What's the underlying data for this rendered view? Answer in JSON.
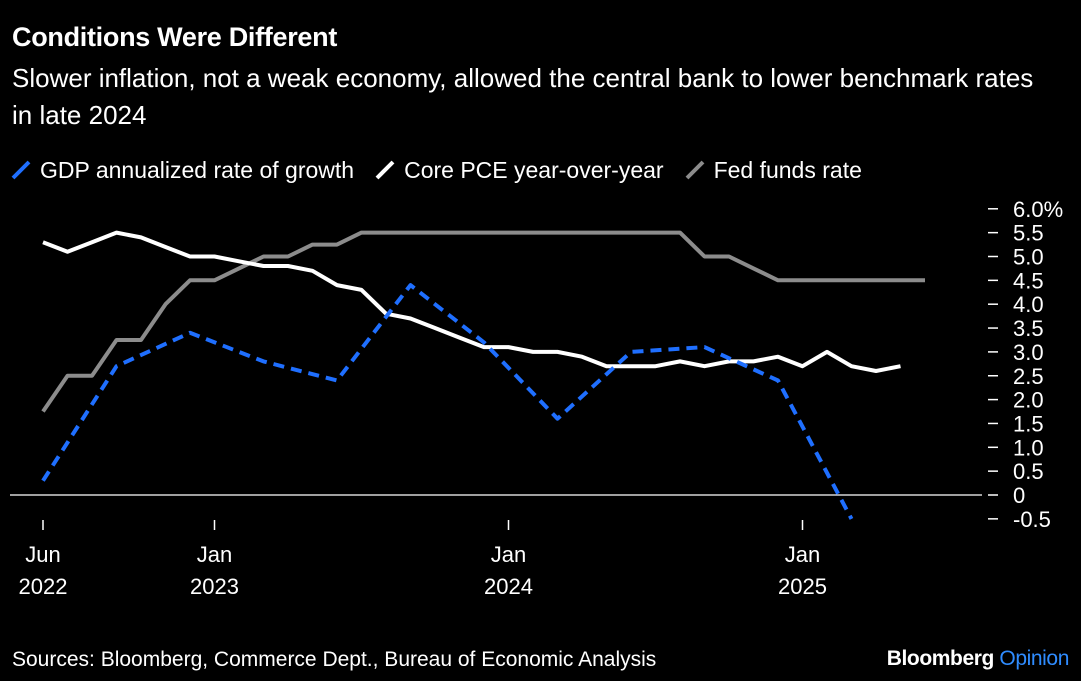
{
  "title": "Conditions Were Different",
  "subtitle": "Slower inflation, not a weak economy, allowed the central bank to lower benchmark rates in late 2024",
  "legend": [
    {
      "label": "GDP annualized rate of growth",
      "color": "#1f6fff",
      "dash": true
    },
    {
      "label": "Core PCE year-over-year",
      "color": "#ffffff",
      "dash": false
    },
    {
      "label": "Fed funds rate",
      "color": "#8c8c8c",
      "dash": false
    }
  ],
  "source": "Sources: Bloomberg, Commerce Dept., Bureau of Economic Analysis",
  "brand": {
    "name": "Bloomberg",
    "suffix": "Opinion"
  },
  "chart_data": {
    "type": "line",
    "x_range": [
      "2022-06",
      "2025-06"
    ],
    "ylim": [
      -0.5,
      6.0
    ],
    "y_ticks": [
      {
        "value": 6.0,
        "label": "6.0%"
      },
      {
        "value": 5.5,
        "label": "5.5"
      },
      {
        "value": 5.0,
        "label": "5.0"
      },
      {
        "value": 4.5,
        "label": "4.5"
      },
      {
        "value": 4.0,
        "label": "4.0"
      },
      {
        "value": 3.5,
        "label": "3.5"
      },
      {
        "value": 3.0,
        "label": "3.0"
      },
      {
        "value": 2.5,
        "label": "2.5"
      },
      {
        "value": 2.0,
        "label": "2.0"
      },
      {
        "value": 1.5,
        "label": "1.5"
      },
      {
        "value": 1.0,
        "label": "1.0"
      },
      {
        "value": 0.5,
        "label": "0.5"
      },
      {
        "value": 0,
        "label": "0"
      },
      {
        "value": -0.5,
        "label": "-0.5"
      }
    ],
    "x_ticks": [
      {
        "x": "2022-06",
        "month": "Jun",
        "year": "2022"
      },
      {
        "x": "2023-01",
        "month": "Jan",
        "year": "2023"
      },
      {
        "x": "2024-01",
        "month": "Jan",
        "year": "2024"
      },
      {
        "x": "2025-01",
        "month": "Jan",
        "year": "2025"
      }
    ],
    "series": [
      {
        "name": "GDP annualized rate of growth",
        "x": [
          "2022-06",
          "2022-09",
          "2022-12",
          "2023-03",
          "2023-06",
          "2023-09",
          "2023-12",
          "2024-03",
          "2024-06",
          "2024-09",
          "2024-12",
          "2025-03"
        ],
        "values": [
          0.3,
          2.7,
          3.4,
          2.8,
          2.4,
          4.4,
          3.2,
          1.6,
          3.0,
          3.1,
          2.4,
          -0.5
        ]
      },
      {
        "name": "Core PCE year-over-year",
        "x": [
          "2022-06",
          "2022-07",
          "2022-08",
          "2022-09",
          "2022-10",
          "2022-11",
          "2022-12",
          "2023-01",
          "2023-02",
          "2023-03",
          "2023-04",
          "2023-05",
          "2023-06",
          "2023-07",
          "2023-08",
          "2023-09",
          "2023-10",
          "2023-11",
          "2023-12",
          "2024-01",
          "2024-02",
          "2024-03",
          "2024-04",
          "2024-05",
          "2024-06",
          "2024-07",
          "2024-08",
          "2024-09",
          "2024-10",
          "2024-11",
          "2024-12",
          "2025-01",
          "2025-02",
          "2025-03",
          "2025-04",
          "2025-05"
        ],
        "values": [
          5.3,
          5.1,
          5.3,
          5.5,
          5.4,
          5.2,
          5.0,
          5.0,
          4.9,
          4.8,
          4.8,
          4.7,
          4.4,
          4.3,
          3.8,
          3.7,
          3.5,
          3.3,
          3.1,
          3.1,
          3.0,
          3.0,
          2.9,
          2.7,
          2.7,
          2.7,
          2.8,
          2.7,
          2.8,
          2.8,
          2.9,
          2.7,
          3.0,
          2.7,
          2.6,
          2.7
        ]
      },
      {
        "name": "Fed funds rate",
        "x": [
          "2022-06",
          "2022-07",
          "2022-08",
          "2022-09",
          "2022-10",
          "2022-11",
          "2022-12",
          "2023-01",
          "2023-02",
          "2023-03",
          "2023-04",
          "2023-05",
          "2023-06",
          "2023-07",
          "2024-08",
          "2024-09",
          "2024-10",
          "2024-11",
          "2024-12",
          "2025-06"
        ],
        "values": [
          1.75,
          2.5,
          2.5,
          3.25,
          3.25,
          4.0,
          4.5,
          4.5,
          4.75,
          5.0,
          5.0,
          5.25,
          5.25,
          5.5,
          5.5,
          5.0,
          5.0,
          4.75,
          4.5,
          4.5
        ]
      }
    ]
  }
}
